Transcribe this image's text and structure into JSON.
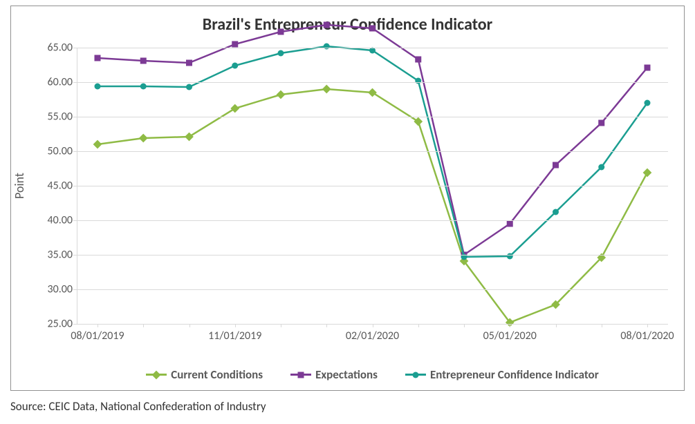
{
  "chart": {
    "title": "Brazil's Entrepreneur Confidence Indicator",
    "title_fontsize": 24,
    "ylabel": "Point",
    "ylabel_fontsize": 18,
    "source": "Source: CEIC Data, National Confederation of Industry",
    "ylim": [
      25,
      65
    ],
    "ytick_step": 5,
    "yticks": [
      "25.00",
      "30.00",
      "35.00",
      "40.00",
      "45.00",
      "50.00",
      "55.00",
      "60.00",
      "65.00"
    ],
    "xticks": [
      {
        "label": "08/01/2019",
        "index": 0
      },
      {
        "label": "11/01/2019",
        "index": 3
      },
      {
        "label": "02/01/2020",
        "index": 6
      },
      {
        "label": "05/01/2020",
        "index": 9
      },
      {
        "label": "08/01/2020",
        "index": 12
      }
    ],
    "n_points": 13,
    "background_color": "#ffffff",
    "grid_color": "#d9d9d9",
    "text_color": "#595959",
    "line_width": 2.5,
    "marker_size": 9,
    "series": [
      {
        "name": "Current Conditions",
        "color": "#8fbb45",
        "marker": "diamond",
        "values": [
          51.0,
          51.9,
          52.1,
          56.2,
          58.2,
          59.0,
          58.5,
          54.3,
          34.1,
          25.2,
          27.8,
          34.6,
          46.9
        ]
      },
      {
        "name": "Expectations",
        "color": "#7c3a95",
        "marker": "square",
        "values": [
          63.5,
          63.1,
          62.8,
          65.5,
          67.3,
          68.3,
          67.8,
          63.3,
          35.0,
          39.5,
          48.0,
          54.1,
          62.1
        ]
      },
      {
        "name": "Entrepreneur Confidence Indicator",
        "color": "#1b9e91",
        "marker": "circle",
        "values": [
          59.4,
          59.4,
          59.3,
          62.4,
          64.2,
          65.2,
          64.6,
          60.2,
          34.7,
          34.8,
          41.2,
          47.7,
          57.0
        ]
      }
    ]
  }
}
